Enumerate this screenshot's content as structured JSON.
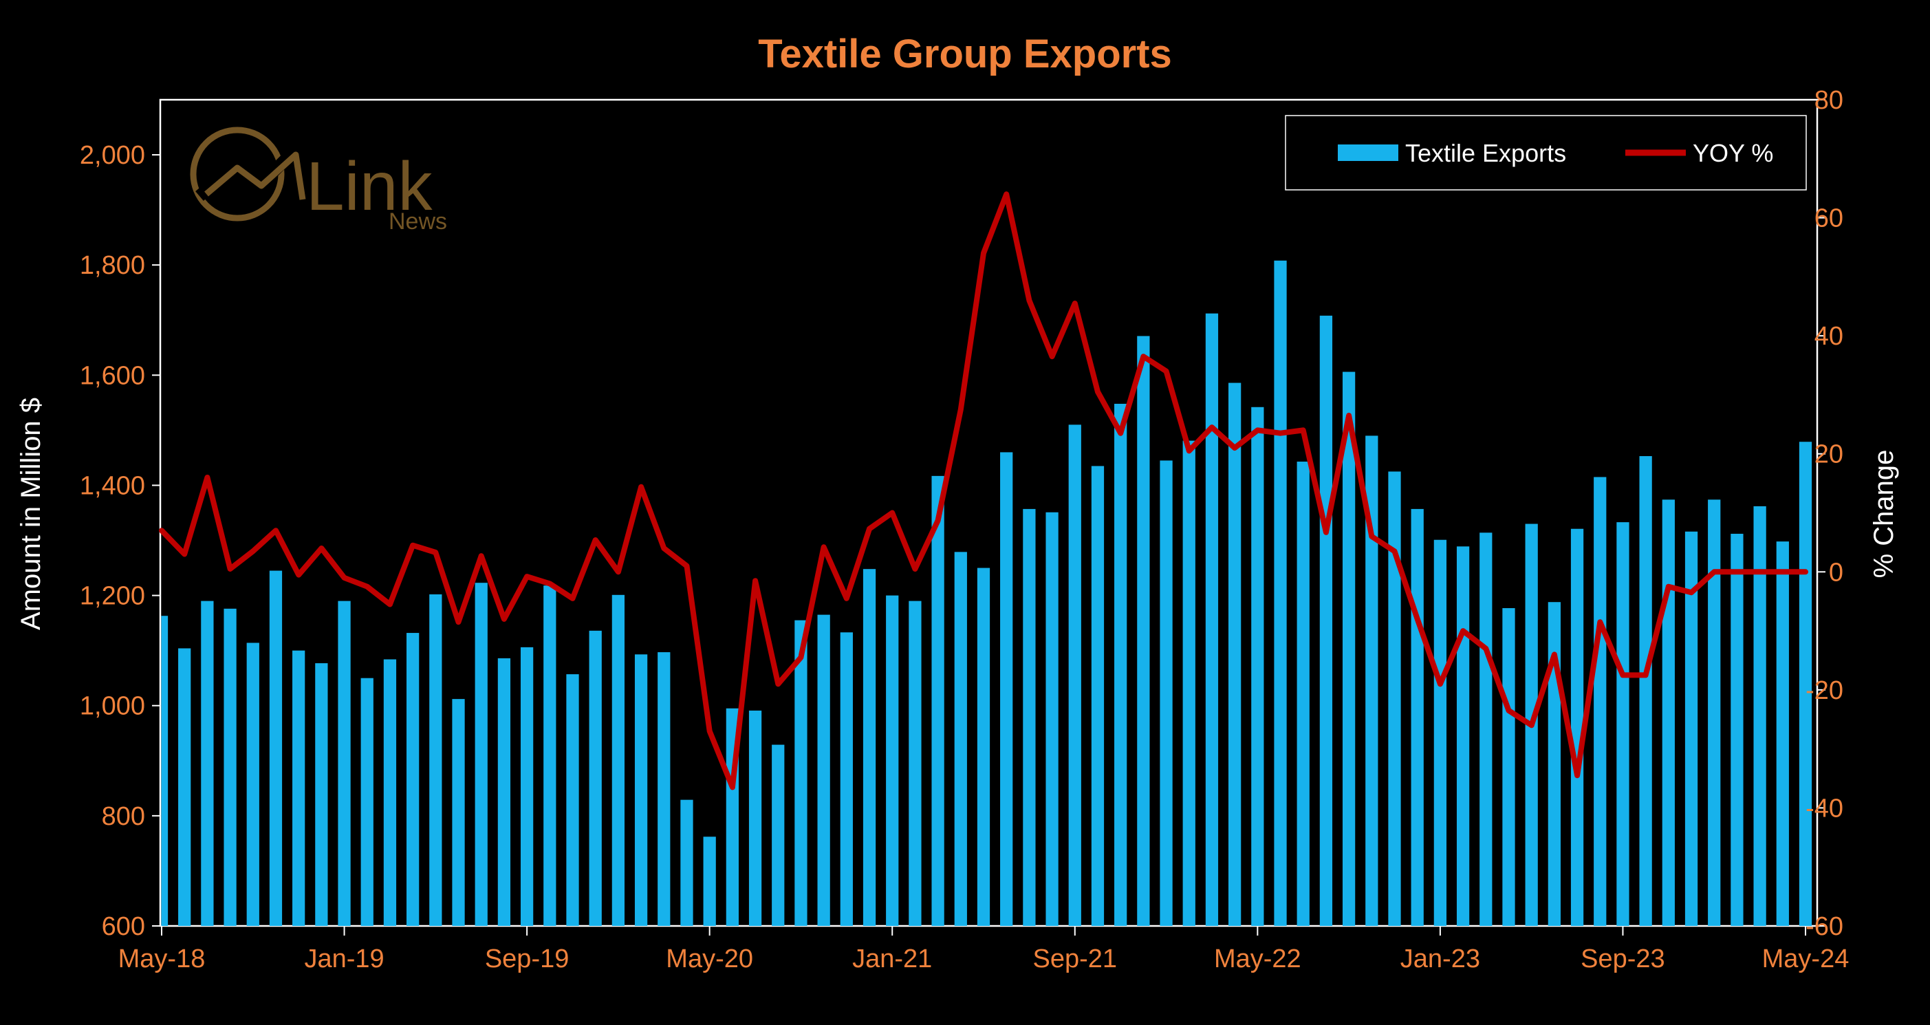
{
  "chart_data": {
    "type": "bar",
    "title": "Textile Group Exports",
    "ylabel": "Amount in Million $",
    "y2label": "% Change",
    "ylim": [
      600,
      2100
    ],
    "y2lim": [
      -60,
      80
    ],
    "yticks": [
      600,
      800,
      1000,
      1200,
      1400,
      1600,
      1800,
      2000
    ],
    "ytick_labels": [
      "600",
      "800",
      "1,000",
      "1,200",
      "1,400",
      "1,600",
      "1,800",
      "2,000"
    ],
    "y2ticks": [
      -60,
      -40,
      -20,
      0,
      20,
      40,
      60,
      80
    ],
    "y2tick_labels": [
      "-60",
      "-40",
      "-20",
      "0",
      "20",
      "40",
      "60",
      "80"
    ],
    "xtick_labels": [
      "May-18",
      "Jan-19",
      "Sep-19",
      "May-20",
      "Jan-21",
      "Sep-21",
      "May-22",
      "Jan-23",
      "Sep-23",
      "May-24"
    ],
    "xtick_index": [
      0,
      8,
      16,
      24,
      32,
      40,
      48,
      56,
      64,
      72
    ],
    "grid": false,
    "legend_position": "top-right",
    "series": [
      {
        "name": "Textile Exports",
        "kind": "bar",
        "axis": "left",
        "color": "#17B2EC",
        "values": [
          1163,
          1104,
          1190,
          1176,
          1114,
          1245,
          1100,
          1077,
          1190,
          1050,
          1084,
          1132,
          1202,
          1012,
          1223,
          1086,
          1106,
          1218,
          1057,
          1136,
          1201,
          1093,
          1097,
          829,
          762,
          995,
          991,
          929,
          1155,
          1165,
          1133,
          1248,
          1200,
          1190,
          1417,
          1279,
          1250,
          1460,
          1357,
          1351,
          1510,
          1435,
          1548,
          1671,
          1445,
          1481,
          1712,
          1586,
          1542,
          1808,
          1443,
          1708,
          1606,
          1490,
          1425,
          1357,
          1301,
          1289,
          1314,
          1177,
          1330,
          1188,
          1321,
          1415,
          1333,
          1453,
          1374,
          1316,
          1374,
          1312,
          1362,
          1298,
          1479
        ]
      },
      {
        "name": "YOY %",
        "kind": "line",
        "axis": "right",
        "color": "#C00000",
        "values": [
          7,
          3,
          16,
          0.5,
          3.5,
          7,
          -0.5,
          4,
          -1,
          -2.5,
          -5.5,
          4.5,
          3.3,
          -8.5,
          2.7,
          -8,
          -0.8,
          -2,
          -4.5,
          5.4,
          0,
          14.4,
          4,
          1,
          -27,
          -36.5,
          -1.5,
          -19,
          -14.5,
          4.2,
          -4.5,
          7.3,
          10,
          0.5,
          8.7,
          27.5,
          54,
          64,
          46,
          36.5,
          45.5,
          30.5,
          23.5,
          36.5,
          34,
          20.5,
          24.5,
          21,
          24,
          23.5,
          24,
          6.7,
          26.5,
          6,
          3.5,
          -8,
          -19,
          -10,
          -13,
          -23.5,
          -26,
          -14,
          -34.5,
          -8.5,
          -17.5,
          -17.5,
          -2.5,
          -3.5,
          0,
          0,
          0,
          0,
          0
        ]
      }
    ]
  },
  "legend": {
    "items": [
      {
        "label": "Textile Exports",
        "color": "#17B2EC"
      },
      {
        "label": "YOY %",
        "color": "#C00000"
      }
    ]
  },
  "watermark": {
    "brand": "Link",
    "sub": "News"
  },
  "colors": {
    "background": "#000000",
    "title": "#F0823C",
    "axis_tick": "#F0823C",
    "axis_label": "#FFFFFF",
    "frame": "#FFFFFF",
    "watermark": "#7A5A28"
  }
}
